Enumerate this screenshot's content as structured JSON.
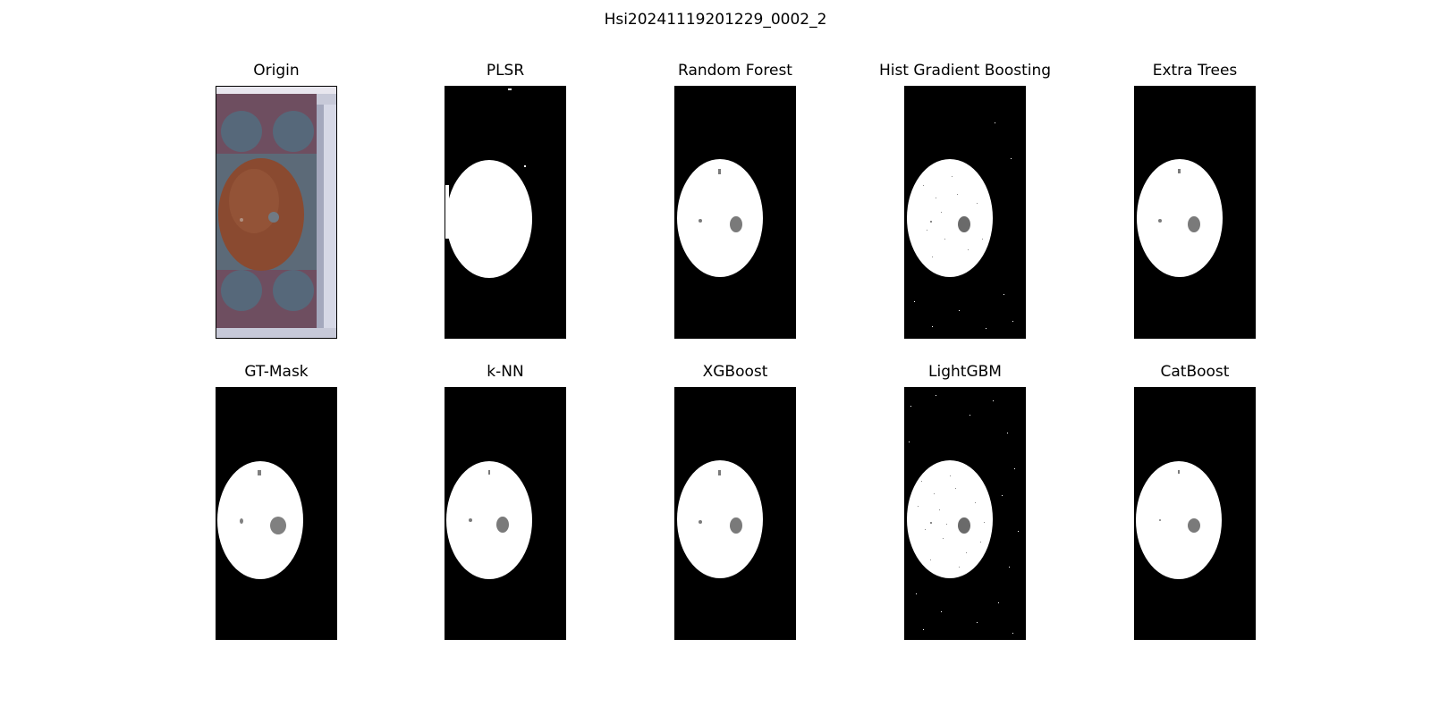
{
  "figure": {
    "title": "Hsi20241119201229_0002_2"
  },
  "panels": [
    {
      "id": "origin",
      "title": "Origin",
      "kind": "rgb"
    },
    {
      "id": "plsr",
      "title": "PLSR",
      "kind": "mask",
      "variant": "solid"
    },
    {
      "id": "random-forest",
      "title": "Random Forest",
      "kind": "mask",
      "variant": "defect"
    },
    {
      "id": "hist-gradient-boosting",
      "title": "Hist Gradient Boosting",
      "kind": "mask",
      "variant": "noisy"
    },
    {
      "id": "extra-trees",
      "title": "Extra Trees",
      "kind": "mask",
      "variant": "defect"
    },
    {
      "id": "gt-mask",
      "title": "GT-Mask",
      "kind": "mask",
      "variant": "gt"
    },
    {
      "id": "k-nn",
      "title": "k-NN",
      "kind": "mask",
      "variant": "defect"
    },
    {
      "id": "xgboost",
      "title": "XGBoost",
      "kind": "mask",
      "variant": "defect"
    },
    {
      "id": "lightgbm",
      "title": "LightGBM",
      "kind": "mask",
      "variant": "very-noisy"
    },
    {
      "id": "catboost",
      "title": "CatBoost",
      "kind": "mask",
      "variant": "defect"
    }
  ],
  "colors": {
    "background": "#000000",
    "apple_region": "#ffffff",
    "defect_region": "#808080",
    "apple_skin": "#8a4a30",
    "tray": "#7a5060",
    "tray_holes": "#56687a"
  }
}
